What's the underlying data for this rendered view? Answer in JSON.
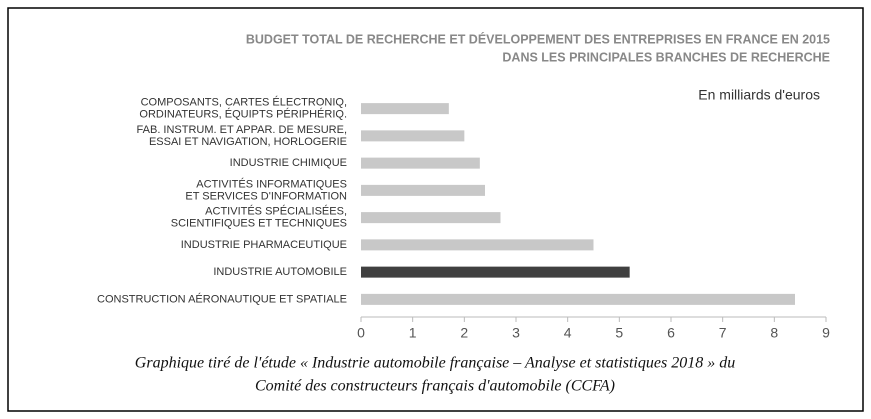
{
  "chart_data": {
    "type": "bar",
    "orientation": "horizontal",
    "title": [
      "BUDGET TOTAL DE RECHERCHE ET DÉVELOPPEMENT DES ENTREPRISES EN FRANCE EN 2015",
      "DANS LES PRINCIPALES BRANCHES DE RECHERCHE"
    ],
    "annotation": "En milliards d'euros",
    "categories": [
      [
        "COMPOSANTS, CARTES ÉLECTRONIQ,",
        "ORDINATEURS, ÉQUIPTS PÉRIPHÉRIQ."
      ],
      [
        "FAB. INSTRUM. ET APPAR. DE MESURE,",
        "ESSAI ET NAVIGATION, HORLOGERIE"
      ],
      [
        "INDUSTRIE CHIMIQUE"
      ],
      [
        "ACTIVITÉS INFORMATIQUES",
        "ET SERVICES D'INFORMATION"
      ],
      [
        "ACTIVITÉS SPÉCIALISÉES,",
        "SCIENTIFIQUES ET TECHNIQUES"
      ],
      [
        "INDUSTRIE PHARMACEUTIQUE"
      ],
      [
        "INDUSTRIE AUTOMOBILE"
      ],
      [
        "CONSTRUCTION AÉRONAUTIQUE ET SPATIALE"
      ]
    ],
    "values": [
      1.7,
      2.0,
      2.3,
      2.4,
      2.7,
      4.5,
      5.2,
      8.4
    ],
    "colors": [
      "#c8c8c8",
      "#c8c8c8",
      "#c8c8c8",
      "#c8c8c8",
      "#c8c8c8",
      "#c8c8c8",
      "#404040",
      "#c8c8c8"
    ],
    "xlim": [
      0,
      9
    ],
    "xticks": [
      0,
      1,
      2,
      3,
      4,
      5,
      6,
      7,
      8,
      9
    ]
  },
  "caption": [
    "Graphique tiré de l'étude « Industrie automobile française – Analyse et statistiques 2018 » du",
    "Comité des constructeurs français d'automobile (CCFA)"
  ]
}
